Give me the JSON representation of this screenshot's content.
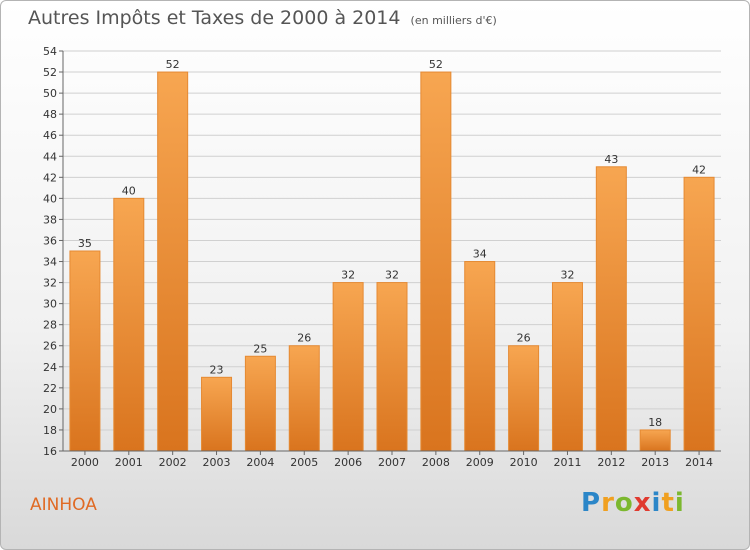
{
  "header": {
    "title": "Autres Impôts et Taxes de 2000 à 2014",
    "unit": "(en milliers d'€)"
  },
  "footer": {
    "commune": "AINHOA",
    "logo": "Proxiti",
    "logo_letters": [
      {
        "ch": "P",
        "color": "#2b86c8"
      },
      {
        "ch": "r",
        "color": "#f0a020"
      },
      {
        "ch": "o",
        "color": "#7cb82f"
      },
      {
        "ch": "x",
        "color": "#e03a2f"
      },
      {
        "ch": "i",
        "color": "#2b86c8"
      },
      {
        "ch": "t",
        "color": "#f0a020"
      },
      {
        "ch": "i",
        "color": "#7cb82f"
      }
    ]
  },
  "chart_data": {
    "type": "bar",
    "title": "Autres Impôts et Taxes de 2000 à 2014",
    "subtitle": "(en milliers d'€)",
    "categories": [
      "2000",
      "2001",
      "2002",
      "2003",
      "2004",
      "2005",
      "2006",
      "2007",
      "2008",
      "2009",
      "2010",
      "2011",
      "2012",
      "2013",
      "2014"
    ],
    "values": [
      35,
      40,
      52,
      23,
      25,
      26,
      32,
      32,
      52,
      34,
      26,
      32,
      43,
      18,
      42
    ],
    "xlabel": "",
    "ylabel": "",
    "ylim": [
      16,
      54
    ],
    "yticks": [
      16,
      18,
      20,
      22,
      24,
      26,
      28,
      30,
      32,
      34,
      36,
      38,
      40,
      42,
      44,
      46,
      48,
      50,
      52,
      54
    ],
    "grid": true,
    "data_labels": true,
    "colors": {
      "bar_light": "#f7a651",
      "bar_dark": "#d9741e",
      "bar_edge": "#e58a33",
      "grid": "#d0d0d0",
      "axis": "#666666"
    }
  }
}
